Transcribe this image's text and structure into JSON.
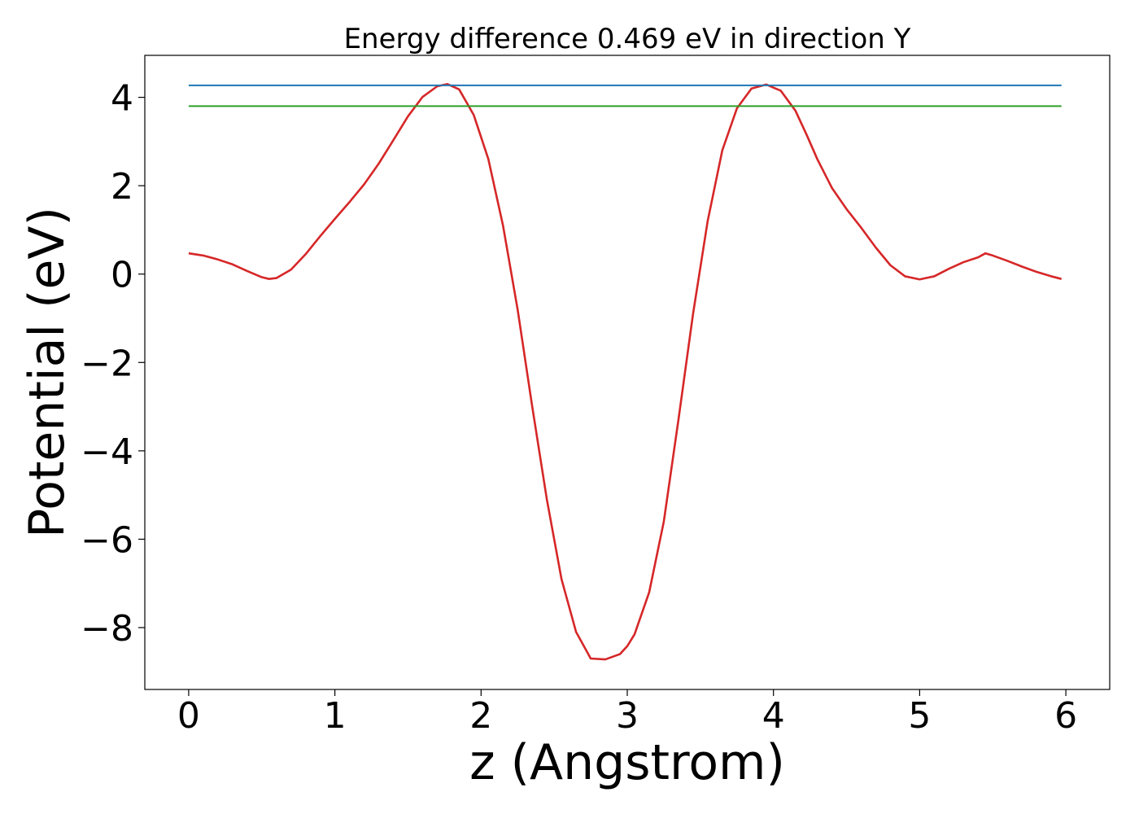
{
  "chart_data": {
    "type": "line",
    "title": "Energy difference 0.469 eV in direction Y",
    "xlabel": "z (Angstrom)",
    "ylabel": "Potential (eV)",
    "xlim": [
      -0.3,
      6.3
    ],
    "ylim": [
      -9.4,
      4.95
    ],
    "xticks": [
      0,
      1,
      2,
      3,
      4,
      5,
      6
    ],
    "xtick_labels": [
      "0",
      "1",
      "2",
      "3",
      "4",
      "5",
      "6"
    ],
    "yticks": [
      4,
      2,
      0,
      -2,
      -4,
      -6,
      -8
    ],
    "ytick_labels": [
      "4",
      "2",
      "0",
      "−2",
      "−4",
      "−6",
      "−8"
    ],
    "grid": false,
    "series": [
      {
        "color": "#d62728",
        "x": [
          0,
          0.1,
          0.2,
          0.3,
          0.4,
          0.5,
          0.55,
          0.6,
          0.7,
          0.8,
          0.9,
          1.0,
          1.1,
          1.2,
          1.3,
          1.4,
          1.5,
          1.6,
          1.7,
          1.77,
          1.85,
          1.95,
          2.05,
          2.15,
          2.25,
          2.35,
          2.45,
          2.55,
          2.65,
          2.75,
          2.85,
          2.95,
          3.0,
          3.05,
          3.15,
          3.25,
          3.35,
          3.45,
          3.55,
          3.65,
          3.75,
          3.85,
          3.95,
          4.05,
          4.15,
          4.23,
          4.3,
          4.4,
          4.5,
          4.6,
          4.7,
          4.8,
          4.9,
          5.0,
          5.1,
          5.2,
          5.3,
          5.4,
          5.45,
          5.5,
          5.6,
          5.7,
          5.8,
          5.9,
          5.97
        ],
        "y": [
          0.47,
          0.42,
          0.33,
          0.22,
          0.07,
          -0.07,
          -0.11,
          -0.09,
          0.1,
          0.45,
          0.86,
          1.25,
          1.63,
          2.03,
          2.5,
          3.03,
          3.57,
          4.01,
          4.25,
          4.3,
          4.18,
          3.6,
          2.6,
          1.1,
          -0.8,
          -3.0,
          -5.1,
          -6.9,
          -8.1,
          -8.7,
          -8.72,
          -8.6,
          -8.42,
          -8.15,
          -7.2,
          -5.6,
          -3.3,
          -0.9,
          1.2,
          2.8,
          3.75,
          4.2,
          4.29,
          4.15,
          3.7,
          3.13,
          2.6,
          1.95,
          1.47,
          1.05,
          0.6,
          0.2,
          -0.05,
          -0.12,
          -0.05,
          0.12,
          0.27,
          0.38,
          0.47,
          0.42,
          0.3,
          0.17,
          0.05,
          -0.05,
          -0.11
        ]
      },
      {
        "color": "#1f77b4",
        "x": [
          0,
          5.97
        ],
        "y": [
          4.27,
          4.27
        ]
      },
      {
        "color": "#2ca02c",
        "x": [
          0,
          5.97
        ],
        "y": [
          3.8,
          3.8
        ]
      }
    ]
  }
}
